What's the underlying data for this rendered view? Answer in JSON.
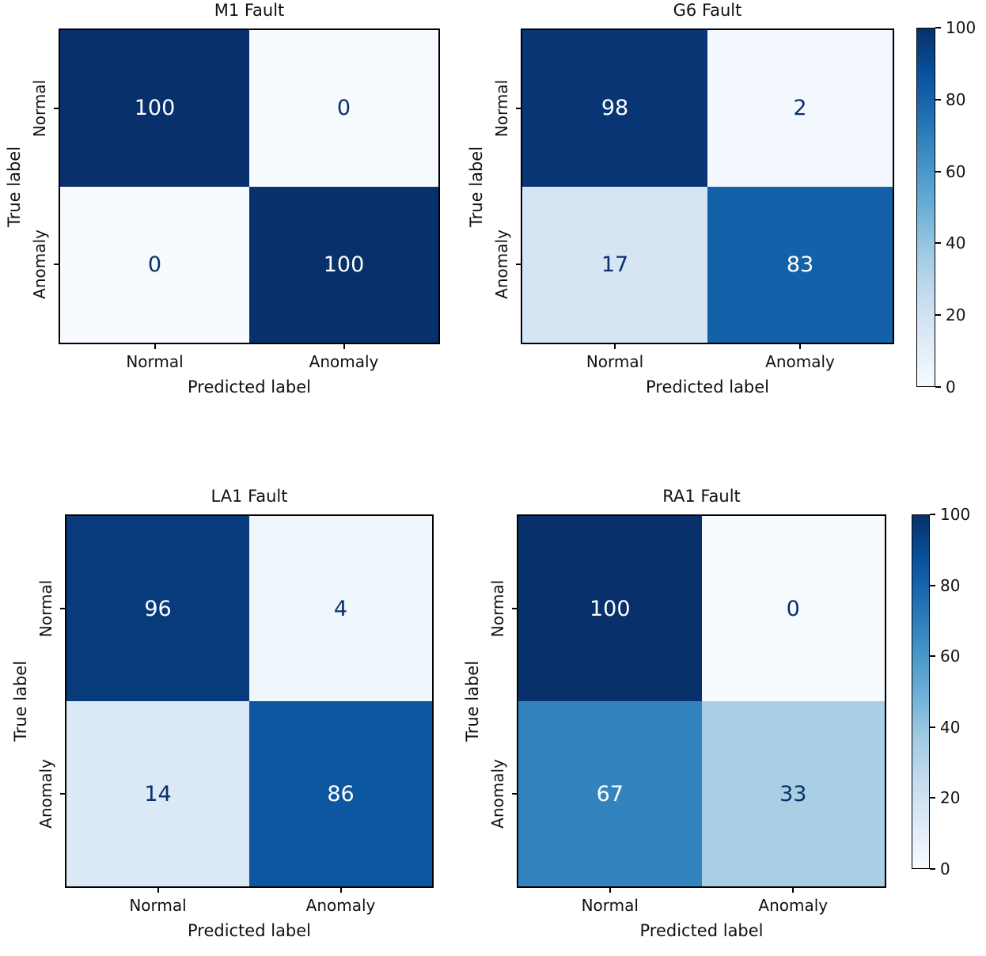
{
  "figure": {
    "background": "#ffffff",
    "description": "2x2 grid of confusion-matrix heatmaps with Blues colormap and two colorbars"
  },
  "chart_data": [
    {
      "type": "heatmap",
      "title": "M1 Fault",
      "xlabel": "Predicted label",
      "ylabel": "True label",
      "x_categories": [
        "Normal",
        "Anomaly"
      ],
      "y_categories": [
        "Normal",
        "Anomaly"
      ],
      "values": [
        [
          100,
          0
        ],
        [
          0,
          100
        ]
      ],
      "vmin": 0,
      "vmax": 100,
      "colormap": "Blues",
      "colorbar": false
    },
    {
      "type": "heatmap",
      "title": "G6 Fault",
      "xlabel": "Predicted label",
      "ylabel": "True label",
      "x_categories": [
        "Normal",
        "Anomaly"
      ],
      "y_categories": [
        "Normal",
        "Anomaly"
      ],
      "values": [
        [
          98,
          2
        ],
        [
          17,
          83
        ]
      ],
      "vmin": 0,
      "vmax": 100,
      "colormap": "Blues",
      "colorbar": true
    },
    {
      "type": "heatmap",
      "title": "LA1 Fault",
      "xlabel": "Predicted label",
      "ylabel": "True label",
      "x_categories": [
        "Normal",
        "Anomaly"
      ],
      "y_categories": [
        "Normal",
        "Anomaly"
      ],
      "values": [
        [
          96,
          4
        ],
        [
          14,
          86
        ]
      ],
      "vmin": 0,
      "vmax": 100,
      "colormap": "Blues",
      "colorbar": false
    },
    {
      "type": "heatmap",
      "title": "RA1 Fault",
      "xlabel": "Predicted label",
      "ylabel": "True label",
      "x_categories": [
        "Normal",
        "Anomaly"
      ],
      "y_categories": [
        "Normal",
        "Anomaly"
      ],
      "values": [
        [
          100,
          0
        ],
        [
          67,
          33
        ]
      ],
      "vmin": 0,
      "vmax": 100,
      "colormap": "Blues",
      "colorbar": true
    }
  ],
  "colorbars": [
    {
      "ticks": [
        "100",
        "80",
        "60",
        "40",
        "20",
        "0"
      ]
    },
    {
      "ticks": [
        "100",
        "80",
        "60",
        "40",
        "20",
        "0"
      ]
    }
  ],
  "render": {
    "cell_bg": [
      [
        [
          "#08306b",
          "#f7fbff"
        ],
        [
          "#f7fbff",
          "#08306b"
        ]
      ],
      [
        [
          "#083573",
          "#f3f8fe"
        ],
        [
          "#d5e5f4",
          "#1561a9"
        ]
      ],
      [
        [
          "#083b7b",
          "#eff6fc"
        ],
        [
          "#dbe9f6",
          "#0d57a1"
        ]
      ],
      [
        [
          "#08306b",
          "#f7fbff"
        ],
        [
          "#3383bf",
          "#a9cfe5"
        ]
      ]
    ],
    "cell_fg": [
      [
        [
          "#ffffff",
          "#08306b"
        ],
        [
          "#08306b",
          "#ffffff"
        ]
      ],
      [
        [
          "#ffffff",
          "#08306b"
        ],
        [
          "#08306b",
          "#ffffff"
        ]
      ],
      [
        [
          "#ffffff",
          "#08306b"
        ],
        [
          "#08306b",
          "#ffffff"
        ]
      ],
      [
        [
          "#ffffff",
          "#08306b"
        ],
        [
          "#ffffff",
          "#08306b"
        ]
      ]
    ],
    "colorbar_gradient_bottom_to_top": [
      "#f7fbff",
      "#deebf7",
      "#c6dbef",
      "#9ecae1",
      "#6baed6",
      "#4292c6",
      "#2171b5",
      "#08519c",
      "#08306b"
    ],
    "spine_color": "#000000",
    "label_color": "#111111"
  }
}
